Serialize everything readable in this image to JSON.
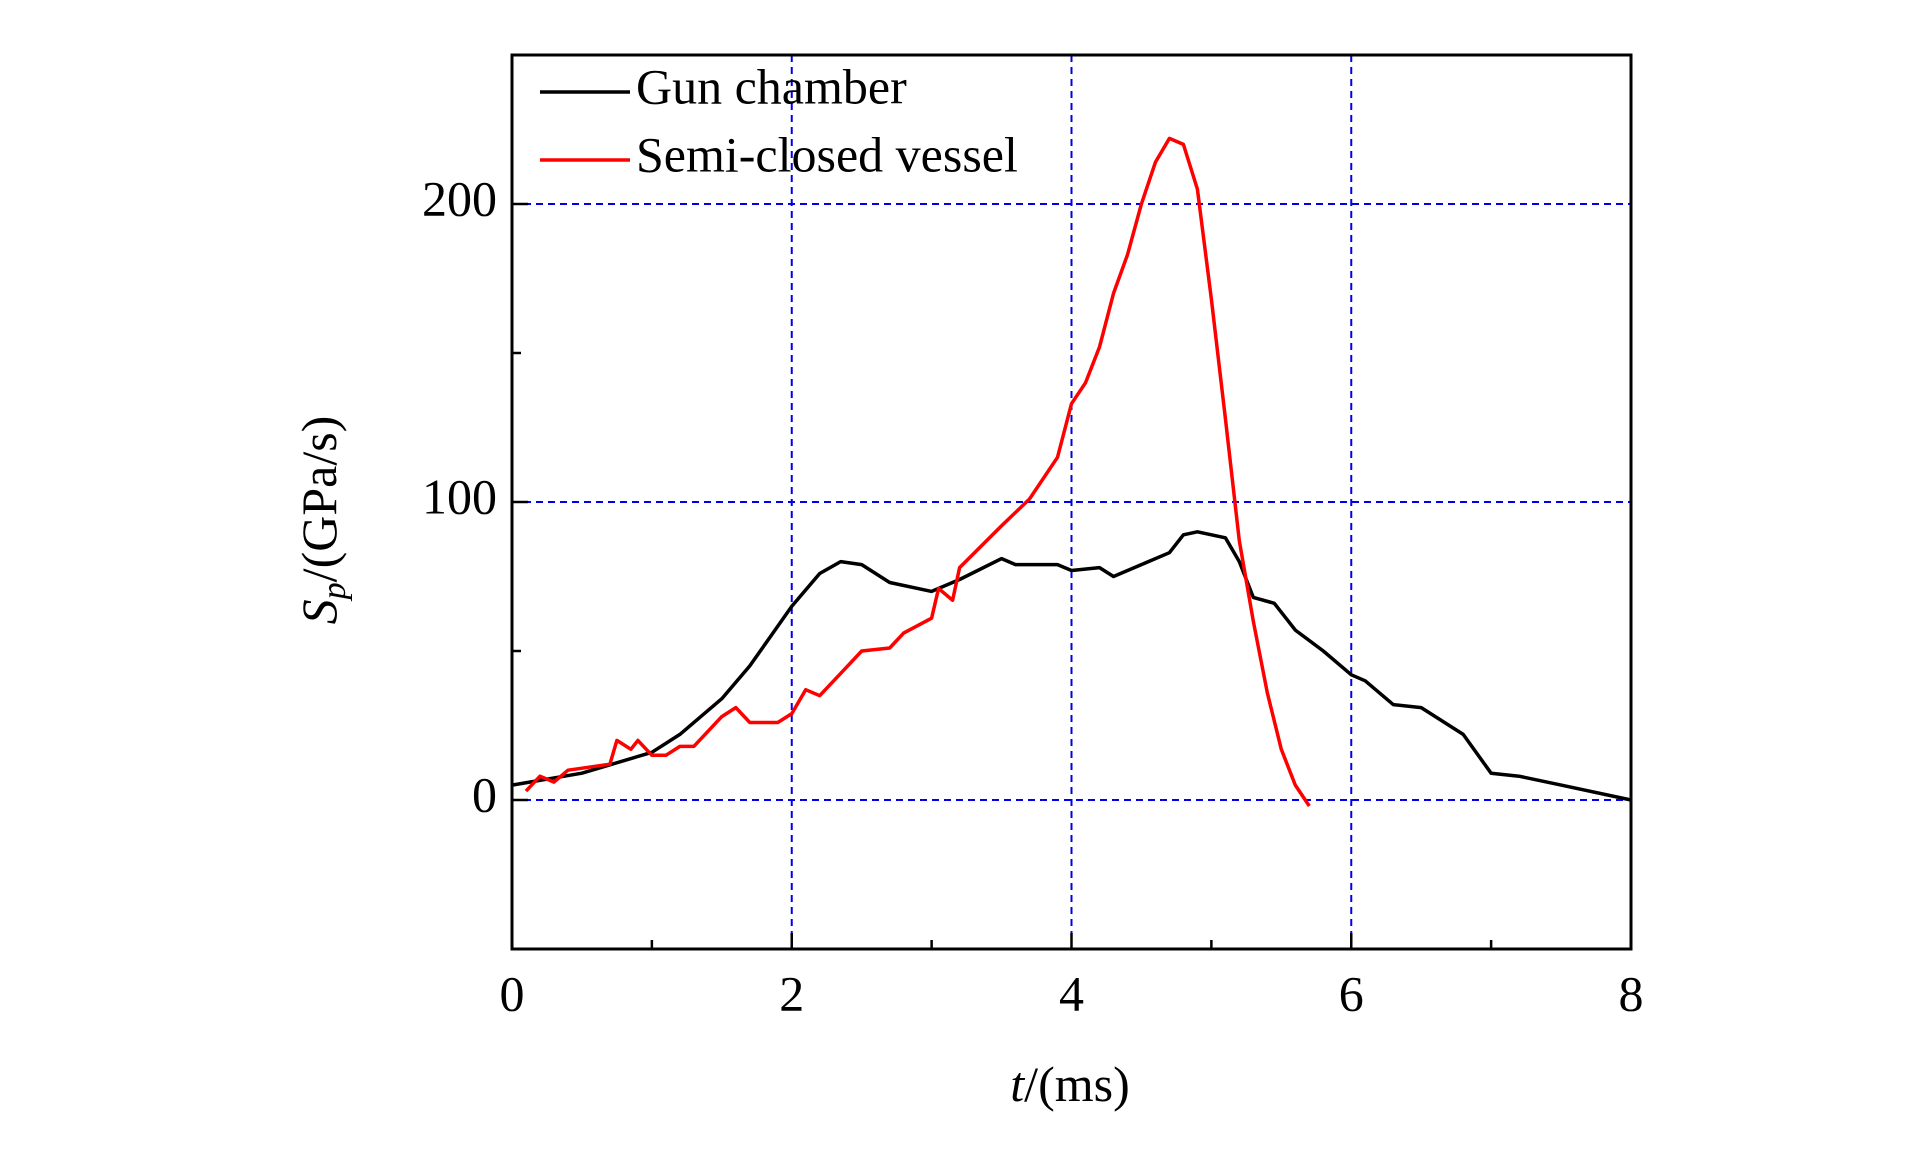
{
  "chart_data": {
    "type": "line",
    "x_label": {
      "symbol": "t",
      "unit": "/(ms)"
    },
    "y_label": {
      "symbol": "S",
      "subscript": "p",
      "unit": "/(GPa/s)"
    },
    "xlim": [
      0,
      8
    ],
    "xticks": [
      0,
      2,
      4,
      6,
      8
    ],
    "x_minor_ticks": [
      1,
      3,
      5,
      7
    ],
    "ylim": [
      -50,
      250
    ],
    "yticks": [
      0,
      100,
      200
    ],
    "y_minor_ticks": [
      50,
      150
    ],
    "grid": true,
    "grid_color": "#0000ee",
    "legend": "upper left",
    "series": [
      {
        "name": "Gun chamber",
        "color": "#000000",
        "x": [
          0,
          0.5,
          1.0,
          1.2,
          1.5,
          1.7,
          2.0,
          2.2,
          2.35,
          2.5,
          2.7,
          3.0,
          3.2,
          3.5,
          3.6,
          3.9,
          4.0,
          4.2,
          4.3,
          4.5,
          4.7,
          4.8,
          4.9,
          5.1,
          5.2,
          5.3,
          5.45,
          5.6,
          5.8,
          6.0,
          6.1,
          6.2,
          6.3,
          6.5,
          6.8,
          7.0,
          7.2,
          7.5,
          8.0
        ],
        "values": [
          5,
          9,
          16,
          22,
          34,
          45,
          65,
          76,
          80,
          79,
          73,
          70,
          74,
          81,
          79,
          79,
          77,
          78,
          75,
          79,
          83,
          89,
          90,
          88,
          80,
          68,
          66,
          57,
          50,
          42,
          40,
          36,
          32,
          31,
          22,
          9,
          8,
          5,
          0
        ]
      },
      {
        "name": "Semi-closed vessel",
        "color": "#ff0000",
        "x": [
          0.1,
          0.2,
          0.3,
          0.4,
          0.7,
          0.75,
          0.85,
          0.9,
          1.0,
          1.1,
          1.2,
          1.3,
          1.5,
          1.6,
          1.7,
          1.9,
          2.0,
          2.1,
          2.2,
          2.4,
          2.5,
          2.7,
          2.8,
          3.0,
          3.05,
          3.15,
          3.2,
          3.5,
          3.7,
          3.9,
          4.0,
          4.1,
          4.2,
          4.3,
          4.4,
          4.5,
          4.6,
          4.7,
          4.8,
          4.9,
          5.0,
          5.1,
          5.2,
          5.3,
          5.4,
          5.5,
          5.6,
          5.7
        ],
        "values": [
          3,
          8,
          6,
          10,
          12,
          20,
          17,
          20,
          15,
          15,
          18,
          18,
          28,
          31,
          26,
          26,
          29,
          37,
          35,
          45,
          50,
          51,
          56,
          61,
          71,
          67,
          78,
          92,
          101,
          115,
          133,
          140,
          152,
          170,
          183,
          200,
          214,
          222,
          220,
          205,
          168,
          128,
          87,
          60,
          36,
          17,
          5,
          -2
        ]
      }
    ]
  }
}
